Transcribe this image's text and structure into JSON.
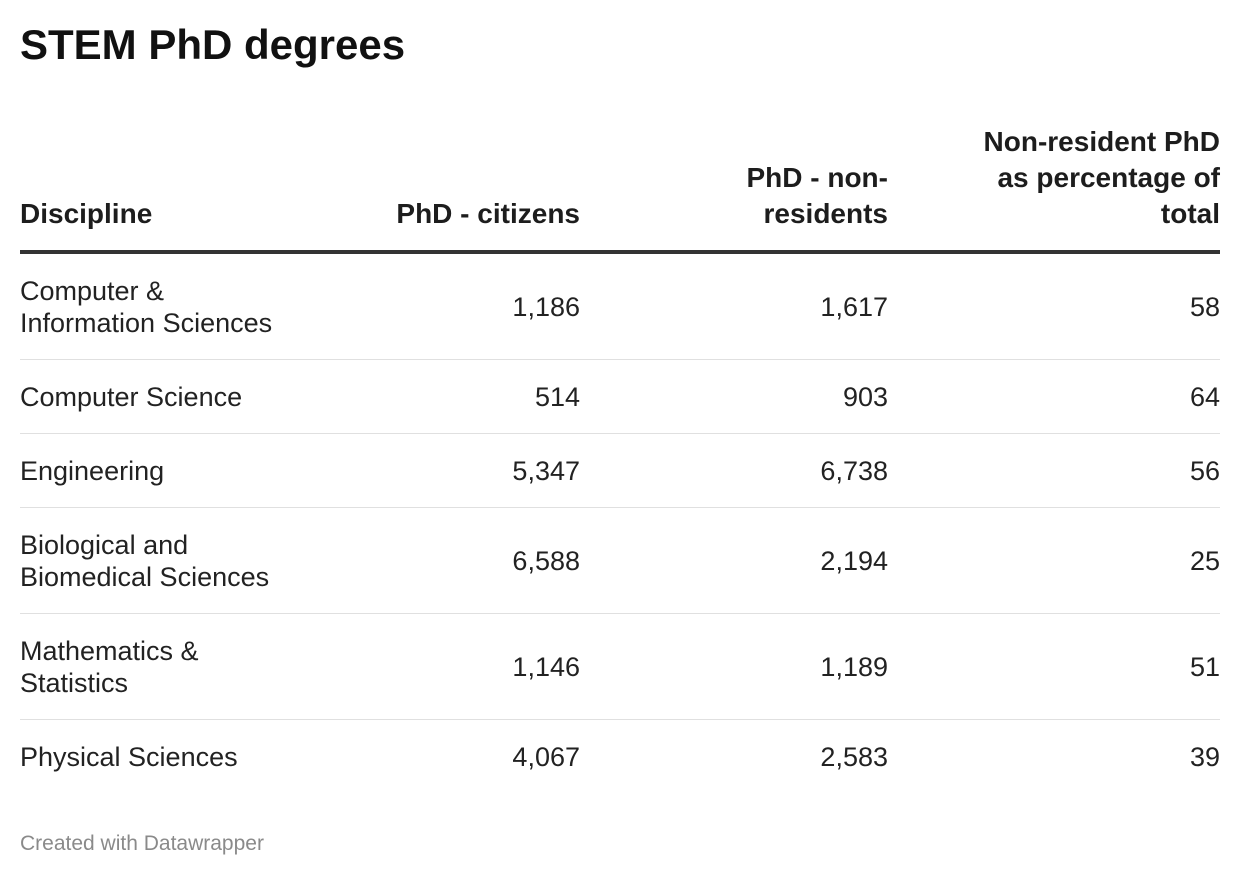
{
  "chart_data": {
    "type": "table",
    "title": "STEM PhD degrees",
    "columns": [
      "Discipline",
      "PhD - citizens",
      "PhD - non-residents",
      "Non-resident PhD as percentage of total"
    ],
    "rows": [
      {
        "discipline": "Computer & Information Sciences",
        "citizens": "1,186",
        "nonresidents": "1,617",
        "pct": "58"
      },
      {
        "discipline": "Computer Science",
        "citizens": "514",
        "nonresidents": "903",
        "pct": "64"
      },
      {
        "discipline": "Engineering",
        "citizens": "5,347",
        "nonresidents": "6,738",
        "pct": "56"
      },
      {
        "discipline": "Biological and Biomedical Sciences",
        "citizens": "6,588",
        "nonresidents": "2,194",
        "pct": "25"
      },
      {
        "discipline": "Mathematics & Statistics",
        "citizens": "1,146",
        "nonresidents": "1,189",
        "pct": "51"
      },
      {
        "discipline": "Physical Sciences",
        "citizens": "4,067",
        "nonresidents": "2,583",
        "pct": "39"
      }
    ]
  },
  "footer": "Created with Datawrapper"
}
